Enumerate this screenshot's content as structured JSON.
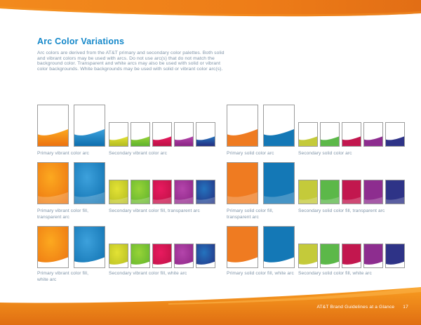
{
  "page": {
    "title": "Arc Color Variations",
    "intro_lines": [
      "Arc colors are derived from the AT&T primary and secondary color palettes. Both solid",
      "and vibrant colors may be used with arcs. Do not use arc(s) that do not match the",
      "background color. Transparent and white arcs may also be used with solid or vibrant",
      "color backgrounds. White backgrounds may be used with solid or vibrant color arc(s)."
    ]
  },
  "footer": {
    "text": "AT&T Brand Guidelines at a Glance",
    "page_number": "17"
  },
  "colors": {
    "title_blue": "#1387c9",
    "body_gray_blue": "#7e93a7",
    "swatch_border": "#9b9b9b",
    "header_orange_light": "#F28A1D",
    "header_orange_dark": "#E26E15",
    "footer_orange_top": "#F89C20",
    "footer_orange_bottom": "#E06E12",
    "footer_highlight": "#FBB045"
  },
  "palette": {
    "primary_vibrant": [
      {
        "c": "#FCA91F",
        "e": "#EC7211"
      },
      {
        "c": "#3DA1DC",
        "e": "#0E6FAE"
      }
    ],
    "primary_solid": [
      {
        "c": "#EF7B21",
        "e": "#EF7B21"
      },
      {
        "c": "#1478B6",
        "e": "#1478B6"
      }
    ],
    "secondary_vibrant": [
      {
        "c": "#E3E234",
        "e": "#B4BC22"
      },
      {
        "c": "#97D337",
        "e": "#5FB32E"
      },
      {
        "c": "#E81A5F",
        "e": "#BC1145"
      },
      {
        "c": "#B445AB",
        "e": "#8A2484"
      },
      {
        "c": "#2473BE",
        "e": "#232F80"
      }
    ],
    "secondary_solid": [
      {
        "c": "#C4CA3A",
        "e": "#C4CA3A"
      },
      {
        "c": "#5CB849",
        "e": "#5CB849"
      },
      {
        "c": "#C2174E",
        "e": "#C2174E"
      },
      {
        "c": "#8D2D8F",
        "e": "#8D2D8F"
      },
      {
        "c": "#2E3387",
        "e": "#2E3387"
      }
    ]
  },
  "rows": [
    {
      "variant": "arc",
      "groups": [
        {
          "palette": "primary_vibrant",
          "size": "large",
          "label_lines": [
            "Primary vibrant color arc"
          ]
        },
        {
          "palette": "secondary_vibrant",
          "size": "small",
          "label_lines": [
            "Secondary vibrant color arc"
          ]
        },
        {
          "palette": "primary_solid",
          "size": "large",
          "label_lines": [
            "Primary solid color arc"
          ]
        },
        {
          "palette": "secondary_solid",
          "size": "small",
          "label_lines": [
            "Secondary solid color arc"
          ]
        }
      ]
    },
    {
      "variant": "fill-transparent",
      "groups": [
        {
          "palette": "primary_vibrant",
          "size": "large",
          "label_lines": [
            "Primary vibrant color fill,",
            "transparent arc"
          ]
        },
        {
          "palette": "secondary_vibrant",
          "size": "small",
          "label_lines": [
            "Secondary vibrant color fill, transparent arc"
          ]
        },
        {
          "palette": "primary_solid",
          "size": "large",
          "label_lines": [
            "Primary solid color fill,",
            "transparent arc"
          ]
        },
        {
          "palette": "secondary_solid",
          "size": "small",
          "label_lines": [
            "Secondary solid color fill, transparent arc"
          ]
        }
      ]
    },
    {
      "variant": "fill-white",
      "groups": [
        {
          "palette": "primary_vibrant",
          "size": "large",
          "label_lines": [
            "Primary vibrant color fill,",
            "white arc"
          ]
        },
        {
          "palette": "secondary_vibrant",
          "size": "small",
          "label_lines": [
            "Secondary vibrant color fill, white arc"
          ]
        },
        {
          "palette": "primary_solid",
          "size": "large",
          "label_lines": [
            "Primary solid color fill,  white arc"
          ]
        },
        {
          "palette": "secondary_solid",
          "size": "small",
          "label_lines": [
            "Secondary solid color fill, white arc"
          ]
        }
      ]
    }
  ]
}
